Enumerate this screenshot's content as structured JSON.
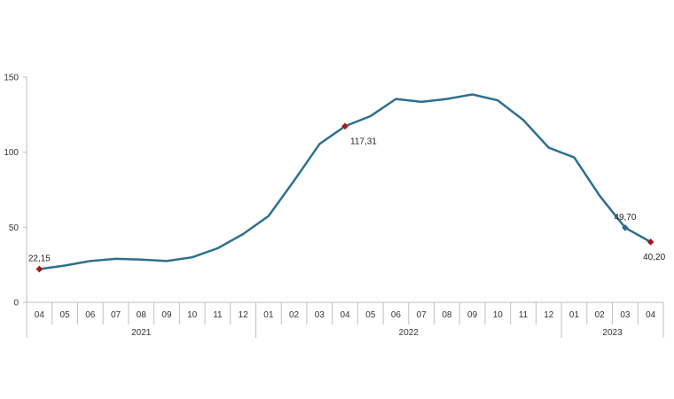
{
  "chart_data": {
    "type": "line",
    "title": "",
    "xlabel": "",
    "ylabel": "",
    "ylim": [
      0,
      150
    ],
    "yticks": [
      0,
      50,
      100,
      150
    ],
    "grid": false,
    "legend": "none",
    "x": [
      "04",
      "05",
      "06",
      "07",
      "08",
      "09",
      "10",
      "11",
      "12",
      "01",
      "02",
      "03",
      "04",
      "05",
      "06",
      "07",
      "08",
      "09",
      "10",
      "11",
      "12",
      "01",
      "02",
      "03",
      "04"
    ],
    "years": [
      {
        "label": "2021",
        "start": 0,
        "end": 8
      },
      {
        "label": "2022",
        "start": 9,
        "end": 20
      },
      {
        "label": "2023",
        "start": 21,
        "end": 24
      }
    ],
    "series": [
      {
        "values": [
          22.15,
          24.5,
          27.5,
          29.0,
          28.5,
          27.5,
          30.0,
          36.0,
          45.5,
          57.5,
          81.0,
          105.5,
          117.31,
          124.0,
          135.5,
          133.5,
          135.5,
          138.5,
          134.5,
          121.5,
          103.0,
          96.5,
          71.0,
          49.7,
          40.2
        ],
        "color": "#2e6f8e"
      }
    ],
    "markers": [
      {
        "index": 0,
        "color": "#a01b1b"
      },
      {
        "index": 12,
        "color": "#a01b1b"
      },
      {
        "index": 23,
        "color": "#2e6f8e"
      },
      {
        "index": 24,
        "color": "#a01b1b"
      }
    ],
    "data_labels": [
      {
        "index": 0,
        "text": "22,15",
        "pos": "above"
      },
      {
        "index": 12,
        "text": "117,31",
        "pos": "below-right"
      },
      {
        "index": 23,
        "text": "49,70",
        "pos": "above"
      },
      {
        "index": 24,
        "text": "40,20",
        "pos": "below"
      }
    ]
  }
}
